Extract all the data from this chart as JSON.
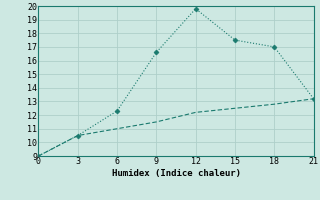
{
  "x": [
    0,
    3,
    6,
    9,
    12,
    15,
    18,
    21
  ],
  "y_line1": [
    9,
    10.5,
    12.3,
    16.6,
    19.8,
    17.5,
    17.0,
    13.2
  ],
  "y_line2": [
    9,
    10.5,
    11.0,
    11.5,
    12.2,
    12.5,
    12.8,
    13.2
  ],
  "line_color": "#1a7a6e",
  "bg_color": "#cde8e2",
  "grid_color": "#aecfca",
  "xlabel": "Humidex (Indice chaleur)",
  "xlim": [
    0,
    21
  ],
  "ylim": [
    9,
    20
  ],
  "xticks": [
    0,
    3,
    6,
    9,
    12,
    15,
    18,
    21
  ],
  "yticks": [
    9,
    10,
    11,
    12,
    13,
    14,
    15,
    16,
    17,
    18,
    19,
    20
  ],
  "tick_fontsize": 6.0,
  "xlabel_fontsize": 6.5
}
